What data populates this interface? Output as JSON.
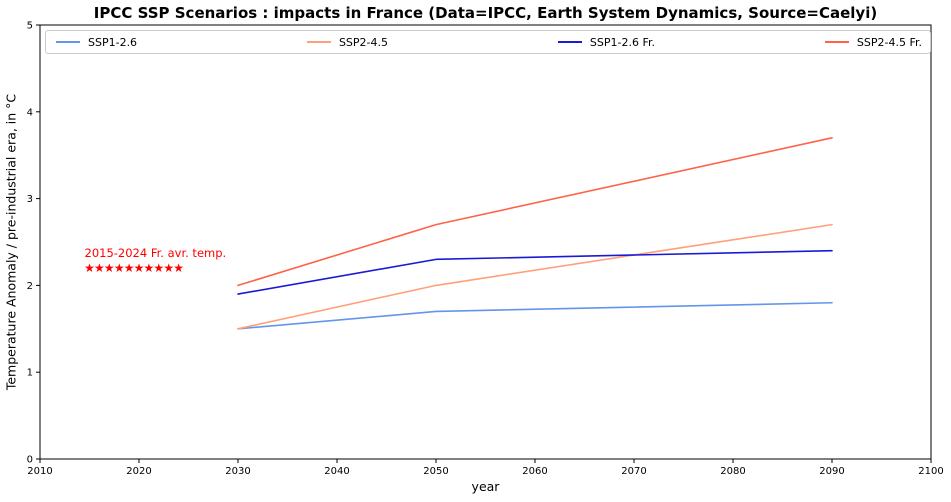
{
  "chart_data": {
    "type": "line",
    "title": "IPCC SSP Scenarios : impacts in France (Data=IPCC, Earth System Dynamics, Source=Caelyi)",
    "xlabel": "year",
    "ylabel": "Temperature Anomaly / pre-industrial era, in °C",
    "xlim": [
      2010,
      2100
    ],
    "ylim": [
      0,
      5
    ],
    "xticks": [
      2010,
      2020,
      2030,
      2040,
      2050,
      2060,
      2070,
      2080,
      2090,
      2100
    ],
    "yticks": [
      0,
      1,
      2,
      3,
      4,
      5
    ],
    "grid": false,
    "legend_position": "top-inside-expanded",
    "x": [
      2030,
      2050,
      2090
    ],
    "series": [
      {
        "name": "SSP1-2.6",
        "color": "#6495ED",
        "values": [
          1.5,
          1.7,
          1.8
        ]
      },
      {
        "name": "SSP2-4.5",
        "color": "#FFA07A",
        "values": [
          1.5,
          2.0,
          2.7
        ]
      },
      {
        "name": "SSP1-2.6 Fr.",
        "color": "#1A1AD6",
        "values": [
          1.9,
          2.3,
          2.4
        ]
      },
      {
        "name": "SSP2-4.5 Fr.",
        "color": "#FF6347",
        "values": [
          2.0,
          2.7,
          3.7
        ]
      }
    ],
    "annotation": {
      "text": "2015-2024 Fr. avr. temp.",
      "color": "#FF0000",
      "x": 2015,
      "y": 2.33
    },
    "markers": {
      "symbol": "star",
      "glyph": "★",
      "color": "#FF0000",
      "years": [
        2015,
        2016,
        2017,
        2018,
        2019,
        2020,
        2021,
        2022,
        2023,
        2024
      ],
      "value": 2.2
    }
  }
}
